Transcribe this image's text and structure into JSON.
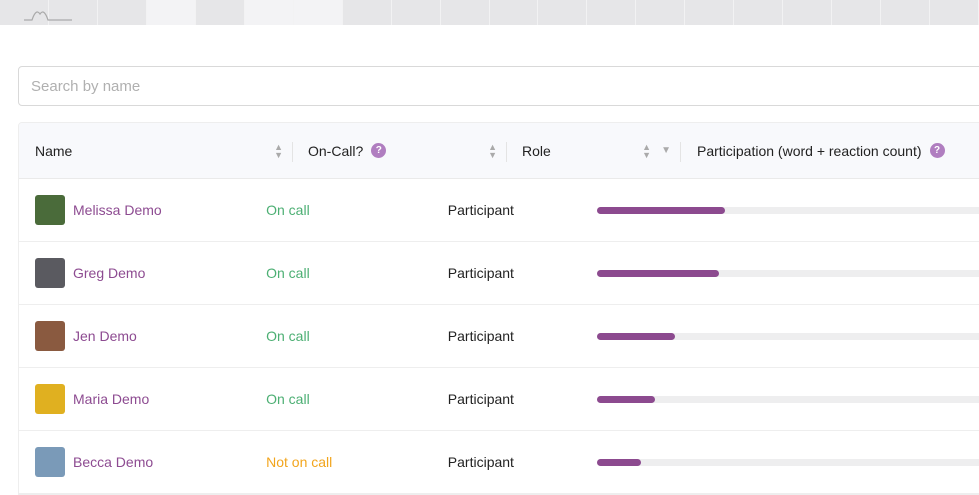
{
  "search": {
    "placeholder": "Search by name"
  },
  "table": {
    "headers": {
      "name": "Name",
      "oncall": "On-Call?",
      "role": "Role",
      "participation": "Participation (word + reaction count)",
      "help": "?"
    },
    "rows": [
      {
        "name": "Melissa Demo",
        "status": "On call",
        "on_call": true,
        "role": "Participant",
        "participation_pct": 32,
        "avatar_color": "#4a6b3a"
      },
      {
        "name": "Greg Demo",
        "status": "On call",
        "on_call": true,
        "role": "Participant",
        "participation_pct": 30.5,
        "avatar_color": "#5a5a60"
      },
      {
        "name": "Jen Demo",
        "status": "On call",
        "on_call": true,
        "role": "Participant",
        "participation_pct": 19.5,
        "avatar_color": "#8a5a40"
      },
      {
        "name": "Maria Demo",
        "status": "On call",
        "on_call": true,
        "role": "Participant",
        "participation_pct": 14.5,
        "avatar_color": "#e0b020"
      },
      {
        "name": "Becca Demo",
        "status": "Not on call",
        "on_call": false,
        "role": "Participant",
        "participation_pct": 11,
        "avatar_color": "#7a9ab8"
      }
    ]
  },
  "colors": {
    "accent": "#8c4a8f",
    "on_call": "#4caf73",
    "not_on_call": "#f2a51d"
  }
}
